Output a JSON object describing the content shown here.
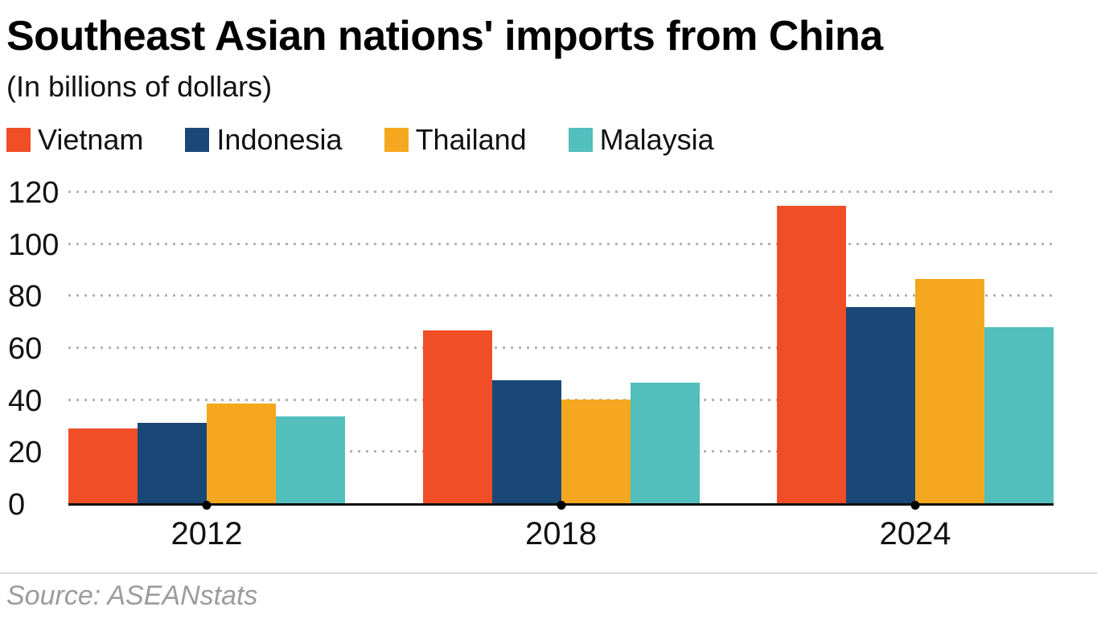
{
  "title": "Southeast Asian nations' imports from China",
  "subtitle": "(In billions of dollars)",
  "source": "Source: ASEANstats",
  "chart_data": {
    "type": "bar",
    "title": "Southeast Asian nations' imports from China",
    "subtitle": "(In billions of dollars)",
    "categories": [
      "2012",
      "2018",
      "2024"
    ],
    "series": [
      {
        "name": "Vietnam",
        "color": "#EF4E27",
        "values": [
          29.5,
          67,
          115
        ]
      },
      {
        "name": "Indonesia",
        "color": "#1A4876",
        "values": [
          31.5,
          48,
          76
        ]
      },
      {
        "name": "Thailand",
        "color": "#F5A81F",
        "values": [
          39,
          40.5,
          87
        ]
      },
      {
        "name": "Malaysia",
        "color": "#52BFBC",
        "values": [
          34,
          47,
          68.5
        ]
      }
    ],
    "xlabel": "",
    "ylabel": "",
    "ylim": [
      0,
      120
    ],
    "yticks": [
      0,
      20,
      40,
      60,
      80,
      100,
      120
    ],
    "grid": "horizontal dotted",
    "legend_position": "top",
    "axis_color": "#111111",
    "gridline_color": "#b3b3b3",
    "source_text_color": "#9b9b9b"
  }
}
